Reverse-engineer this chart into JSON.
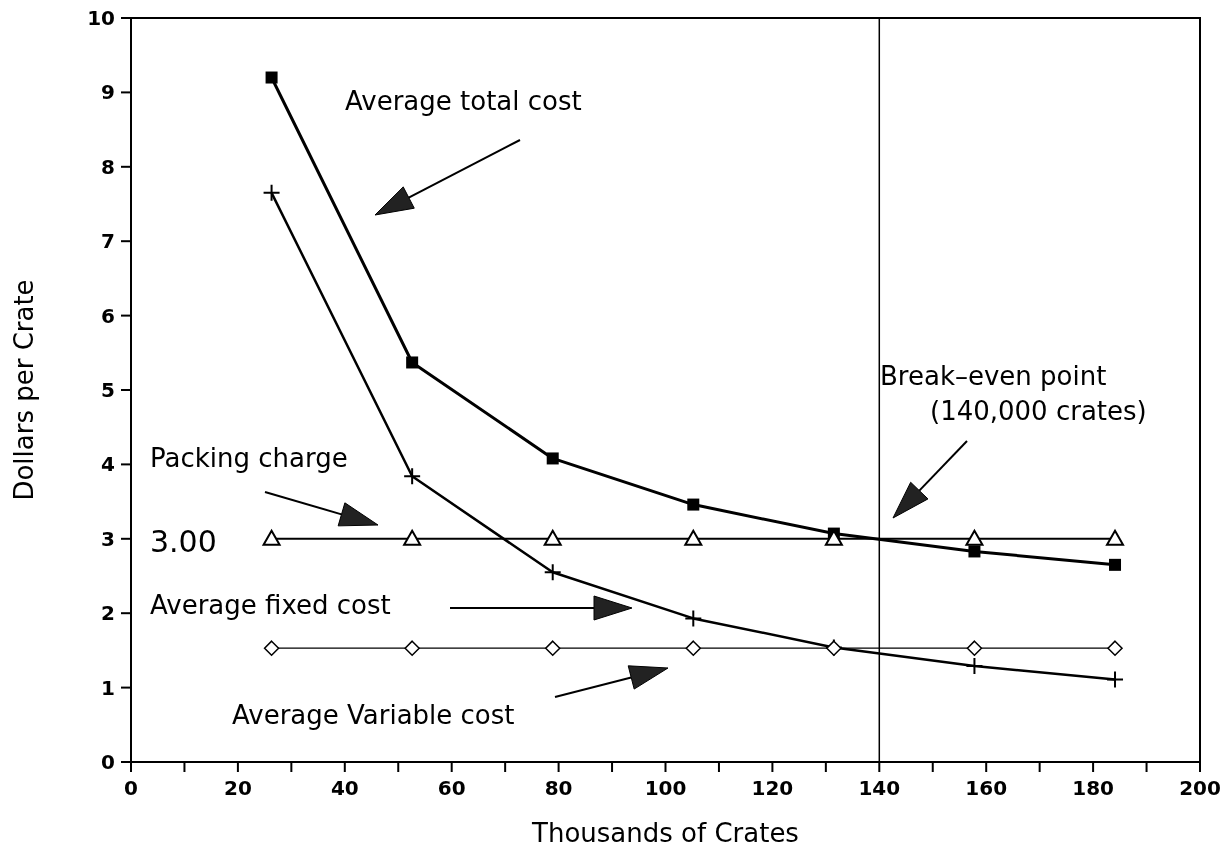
{
  "chart_data": {
    "type": "line",
    "xlabel": "Thousands of Crates",
    "ylabel": "Dollars per Crate",
    "x": [
      26.3,
      52.6,
      78.9,
      105.2,
      131.5,
      157.8,
      184.1
    ],
    "series": [
      {
        "color": "#000000",
        "marker": "square",
        "values": [
          9.2,
          5.37,
          4.08,
          3.46,
          3.07,
          2.83,
          2.65
        ]
      },
      {
        "color": "#000000",
        "marker": "cross",
        "values": [
          7.65,
          3.84,
          2.55,
          1.93,
          1.54,
          1.29,
          1.11
        ]
      },
      {
        "color": "#000000",
        "marker": "triangle",
        "values": [
          3,
          3,
          3,
          3,
          3,
          3,
          3
        ]
      },
      {
        "color": "#000000",
        "marker": "diamond",
        "values": [
          1.53,
          1.53,
          1.53,
          1.53,
          1.53,
          1.53,
          1.53
        ]
      }
    ],
    "xlim": [
      0,
      200
    ],
    "ylim": [
      0,
      10
    ],
    "xticks": [
      0,
      {
        "value": 10,
        "label": null
      },
      20,
      {
        "value": 30,
        "label": null
      },
      40,
      {
        "value": 50,
        "label": null
      },
      60,
      {
        "value": 70,
        "label": null
      },
      80,
      {
        "value": 90,
        "label": null
      },
      100,
      {
        "value": 110,
        "label": null
      },
      120,
      {
        "value": 130,
        "label": null
      },
      140,
      {
        "value": 150,
        "label": null
      },
      160,
      {
        "value": 170,
        "label": null
      },
      180,
      {
        "value": 190,
        "label": null
      },
      200
    ],
    "yticks": [
      0,
      1,
      2,
      3,
      4,
      5,
      6,
      7,
      8,
      9,
      10
    ],
    "ref_lines": [
      {
        "axis": "x",
        "value": 140,
        "color": "#000000"
      }
    ],
    "annotations": [
      "Average total cost",
      "Break–even point\n(140,000 crates)",
      "Packing charge",
      "3.00",
      "Average fixed cost",
      "Average Variable cost"
    ],
    "grid": false
  }
}
